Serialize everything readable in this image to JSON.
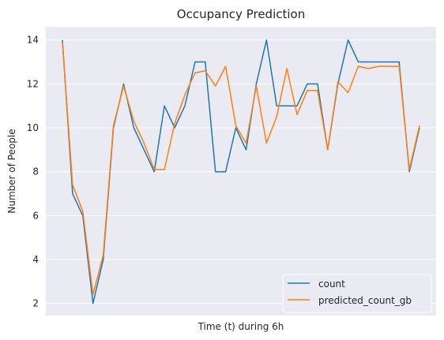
{
  "chart_data": {
    "type": "line",
    "title": "Occupancy Prediction",
    "xlabel": "Time (t) during 6h",
    "ylabel": "Number of People",
    "ylim": [
      1.45,
      14.6
    ],
    "yticks": [
      2,
      4,
      6,
      8,
      10,
      12,
      14
    ],
    "grid": true,
    "legend_position": "lower-right",
    "x": [
      0,
      1,
      2,
      3,
      4,
      5,
      6,
      7,
      8,
      9,
      10,
      11,
      12,
      13,
      14,
      15,
      16,
      17,
      18,
      19,
      20,
      21,
      22,
      23,
      24,
      25,
      26,
      27,
      28,
      29,
      30,
      31,
      32,
      33,
      34,
      35
    ],
    "series": [
      {
        "name": "count",
        "color": "#1f77b4",
        "values": [
          14,
          7,
          6,
          2,
          4,
          10,
          12,
          10,
          9,
          8,
          11,
          10,
          11,
          13,
          13,
          8,
          8,
          10,
          9,
          12,
          14,
          11,
          11,
          11,
          12,
          12,
          9,
          12,
          14,
          13,
          13,
          13,
          13,
          13,
          8,
          10
        ]
      },
      {
        "name": "predicted_count_gb",
        "color": "#ff7f0e",
        "values": [
          13.9,
          7.4,
          6.2,
          2.4,
          4.2,
          10.1,
          11.9,
          10.3,
          9.3,
          8.1,
          8.1,
          10.2,
          11.5,
          12.5,
          12.6,
          11.9,
          12.8,
          10.1,
          9.3,
          11.9,
          9.3,
          10.5,
          12.7,
          10.6,
          11.7,
          11.7,
          9.0,
          12.1,
          11.6,
          12.8,
          12.7,
          12.8,
          12.8,
          12.8,
          8.1,
          10.1
        ]
      }
    ]
  }
}
